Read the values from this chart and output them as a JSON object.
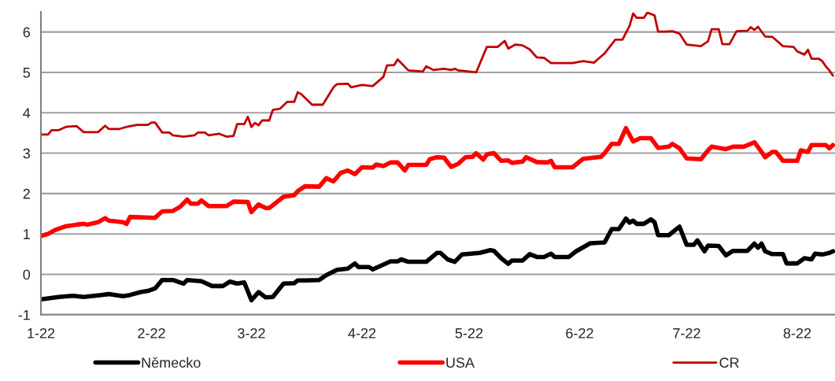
{
  "chart_data": {
    "type": "line",
    "xlim": [
      "2022-01-01",
      "2022-08-11T14:00"
    ],
    "xticks": [
      {
        "value": "2022-01-01",
        "label": "1-22"
      },
      {
        "value": "2022-02-01",
        "label": "2-22"
      },
      {
        "value": "2022-03-01",
        "label": "3-22"
      },
      {
        "value": "2022-04-01",
        "label": "4-22"
      },
      {
        "value": "2022-05-01",
        "label": "5-22"
      },
      {
        "value": "2022-06-01",
        "label": "6-22"
      },
      {
        "value": "2022-07-01",
        "label": "7-22"
      },
      {
        "value": "2022-08-01",
        "label": "8-22"
      }
    ],
    "ylim": [
      -1,
      6.5
    ],
    "yticks": [
      -1,
      0,
      1,
      2,
      3,
      4,
      5,
      6
    ],
    "grid": "y",
    "legend": "bottom",
    "line_style": "solid",
    "marker": "none",
    "series": [
      {
        "name": "Německo",
        "color": "#000000",
        "x": [
          "2022-01-01",
          "2022-01-06",
          "2022-01-10",
          "2022-01-13",
          "2022-01-18",
          "2022-01-20",
          "2022-01-24",
          "2022-01-26",
          "2022-01-29",
          "2022-01-31",
          "2022-02-02",
          "2022-02-04",
          "2022-02-07",
          "2022-02-10",
          "2022-02-11",
          "2022-02-15",
          "2022-02-18",
          "2022-02-21",
          "2022-02-23",
          "2022-02-25",
          "2022-02-27",
          "2022-03-01",
          "2022-03-03",
          "2022-03-05",
          "2022-03-07",
          "2022-03-10",
          "2022-03-13",
          "2022-03-14",
          "2022-03-16",
          "2022-03-20",
          "2022-03-22",
          "2022-03-25",
          "2022-03-28",
          "2022-03-30",
          "2022-03-31",
          "2022-04-03",
          "2022-04-04",
          "2022-04-09",
          "2022-04-11",
          "2022-04-12",
          "2022-04-14",
          "2022-04-19",
          "2022-04-22",
          "2022-04-23",
          "2022-04-25",
          "2022-04-27",
          "2022-04-29",
          "2022-05-04",
          "2022-05-07",
          "2022-05-08",
          "2022-05-10",
          "2022-05-12",
          "2022-05-13",
          "2022-05-16",
          "2022-05-18",
          "2022-05-20",
          "2022-05-22",
          "2022-05-24",
          "2022-05-25",
          "2022-05-29",
          "2022-05-31",
          "2022-06-04",
          "2022-06-08",
          "2022-06-10",
          "2022-06-12",
          "2022-06-14",
          "2022-06-15",
          "2022-06-16",
          "2022-06-17",
          "2022-06-19",
          "2022-06-21",
          "2022-06-22",
          "2022-06-23",
          "2022-06-26",
          "2022-06-29",
          "2022-07-01",
          "2022-07-03",
          "2022-07-04",
          "2022-07-06",
          "2022-07-07",
          "2022-07-10",
          "2022-07-12",
          "2022-07-14",
          "2022-07-18",
          "2022-07-20",
          "2022-07-21",
          "2022-07-22",
          "2022-07-23",
          "2022-07-25",
          "2022-07-28",
          "2022-07-29",
          "2022-08-01",
          "2022-08-03",
          "2022-08-05",
          "2022-08-06",
          "2022-08-08",
          "2022-08-10",
          "2022-08-11"
        ],
        "values": [
          -0.62,
          -0.56,
          -0.53,
          -0.56,
          -0.51,
          -0.49,
          -0.54,
          -0.51,
          -0.44,
          -0.41,
          -0.35,
          -0.14,
          -0.14,
          -0.23,
          -0.14,
          -0.17,
          -0.29,
          -0.29,
          -0.18,
          -0.23,
          -0.2,
          -0.64,
          -0.44,
          -0.57,
          -0.56,
          -0.23,
          -0.22,
          -0.15,
          -0.15,
          -0.14,
          -0.02,
          0.11,
          0.14,
          0.27,
          0.18,
          0.18,
          0.12,
          0.32,
          0.32,
          0.37,
          0.31,
          0.31,
          0.53,
          0.53,
          0.37,
          0.31,
          0.49,
          0.53,
          0.6,
          0.58,
          0.4,
          0.26,
          0.34,
          0.34,
          0.5,
          0.43,
          0.43,
          0.51,
          0.43,
          0.43,
          0.57,
          0.77,
          0.79,
          1.12,
          1.12,
          1.38,
          1.28,
          1.33,
          1.25,
          1.25,
          1.36,
          1.29,
          0.97,
          0.97,
          1.18,
          0.73,
          0.73,
          0.84,
          0.57,
          0.71,
          0.7,
          0.47,
          0.58,
          0.58,
          0.76,
          0.66,
          0.76,
          0.57,
          0.5,
          0.5,
          0.27,
          0.27,
          0.4,
          0.37,
          0.51,
          0.49,
          0.53,
          0.57
        ]
      },
      {
        "name": "USA",
        "color": "#ff0000",
        "x": [
          "2022-01-01",
          "2022-01-03",
          "2022-01-05",
          "2022-01-08",
          "2022-01-11",
          "2022-01-13",
          "2022-01-14",
          "2022-01-17",
          "2022-01-19",
          "2022-01-20",
          "2022-01-24",
          "2022-01-25",
          "2022-01-26",
          "2022-02-02",
          "2022-02-04",
          "2022-02-07",
          "2022-02-09",
          "2022-02-11",
          "2022-02-12",
          "2022-02-14",
          "2022-02-15",
          "2022-02-17",
          "2022-02-22",
          "2022-02-24",
          "2022-02-28",
          "2022-03-01",
          "2022-03-03",
          "2022-03-05",
          "2022-03-06",
          "2022-03-10",
          "2022-03-13",
          "2022-03-14",
          "2022-03-16",
          "2022-03-20",
          "2022-03-22",
          "2022-03-24",
          "2022-03-26",
          "2022-03-28",
          "2022-03-30",
          "2022-04-01",
          "2022-04-04",
          "2022-04-05",
          "2022-04-07",
          "2022-04-09",
          "2022-04-11",
          "2022-04-13",
          "2022-04-14",
          "2022-04-19",
          "2022-04-20",
          "2022-04-22",
          "2022-04-24",
          "2022-04-26",
          "2022-04-28",
          "2022-04-30",
          "2022-05-02",
          "2022-05-03",
          "2022-05-05",
          "2022-05-06",
          "2022-05-08",
          "2022-05-10",
          "2022-05-12",
          "2022-05-13",
          "2022-05-16",
          "2022-05-17",
          "2022-05-20",
          "2022-05-23",
          "2022-05-24",
          "2022-05-25",
          "2022-05-30",
          "2022-06-02",
          "2022-06-04",
          "2022-06-07",
          "2022-06-08",
          "2022-06-10",
          "2022-06-12",
          "2022-06-14",
          "2022-06-16",
          "2022-06-18",
          "2022-06-21",
          "2022-06-23",
          "2022-06-26",
          "2022-06-27",
          "2022-06-29",
          "2022-07-01",
          "2022-07-05",
          "2022-07-07",
          "2022-07-08",
          "2022-07-12",
          "2022-07-14",
          "2022-07-17",
          "2022-07-20",
          "2022-07-22",
          "2022-07-23",
          "2022-07-25",
          "2022-07-26",
          "2022-07-28",
          "2022-08-01",
          "2022-08-02",
          "2022-08-04",
          "2022-08-05",
          "2022-08-09",
          "2022-08-10",
          "2022-08-11"
        ],
        "values": [
          0.95,
          1.0,
          1.1,
          1.19,
          1.23,
          1.25,
          1.23,
          1.29,
          1.39,
          1.33,
          1.29,
          1.25,
          1.42,
          1.4,
          1.56,
          1.57,
          1.67,
          1.85,
          1.75,
          1.75,
          1.83,
          1.69,
          1.69,
          1.8,
          1.79,
          1.54,
          1.73,
          1.64,
          1.64,
          1.92,
          1.96,
          2.06,
          2.18,
          2.17,
          2.38,
          2.3,
          2.51,
          2.57,
          2.48,
          2.65,
          2.64,
          2.72,
          2.68,
          2.77,
          2.77,
          2.57,
          2.71,
          2.71,
          2.85,
          2.9,
          2.89,
          2.66,
          2.74,
          2.9,
          2.91,
          3.0,
          2.84,
          2.97,
          3.0,
          2.81,
          2.82,
          2.76,
          2.79,
          2.9,
          2.78,
          2.77,
          2.81,
          2.65,
          2.65,
          2.86,
          2.88,
          2.91,
          3.0,
          3.23,
          3.23,
          3.62,
          3.29,
          3.37,
          3.37,
          3.13,
          3.16,
          3.23,
          3.12,
          2.87,
          2.85,
          3.07,
          3.16,
          3.1,
          3.16,
          3.16,
          3.27,
          3.03,
          2.9,
          3.03,
          3.03,
          2.81,
          2.81,
          3.07,
          3.03,
          3.2,
          3.2,
          3.12,
          3.2
        ]
      },
      {
        "name": "CR",
        "color": "#c00000",
        "x": [
          "2022-01-01",
          "2022-01-03",
          "2022-01-04",
          "2022-01-06",
          "2022-01-08",
          "2022-01-11",
          "2022-01-13",
          "2022-01-17",
          "2022-01-19",
          "2022-01-20",
          "2022-01-23",
          "2022-01-25",
          "2022-01-28",
          "2022-01-31",
          "2022-02-01",
          "2022-02-02",
          "2022-02-04",
          "2022-02-06",
          "2022-02-07",
          "2022-02-10",
          "2022-02-13",
          "2022-02-14",
          "2022-02-16",
          "2022-02-17",
          "2022-02-20",
          "2022-02-22",
          "2022-02-24",
          "2022-02-25",
          "2022-02-27",
          "2022-02-28",
          "2022-03-01",
          "2022-03-02",
          "2022-03-03",
          "2022-03-04",
          "2022-03-06",
          "2022-03-07",
          "2022-03-09",
          "2022-03-11",
          "2022-03-13",
          "2022-03-14",
          "2022-03-15",
          "2022-03-18",
          "2022-03-21",
          "2022-03-24",
          "2022-03-25",
          "2022-03-28",
          "2022-03-29",
          "2022-04-01",
          "2022-04-04",
          "2022-04-07",
          "2022-04-08",
          "2022-04-10",
          "2022-04-11",
          "2022-04-14",
          "2022-04-18",
          "2022-04-19",
          "2022-04-21",
          "2022-04-24",
          "2022-04-26",
          "2022-04-27",
          "2022-04-28",
          "2022-05-03",
          "2022-05-06",
          "2022-05-09",
          "2022-05-11",
          "2022-05-12",
          "2022-05-14",
          "2022-05-16",
          "2022-05-18",
          "2022-05-20",
          "2022-05-22",
          "2022-05-24",
          "2022-05-30",
          "2022-06-02",
          "2022-06-05",
          "2022-06-08",
          "2022-06-11",
          "2022-06-13",
          "2022-06-15",
          "2022-06-16",
          "2022-06-17",
          "2022-06-19",
          "2022-06-20",
          "2022-06-22",
          "2022-06-23",
          "2022-06-25",
          "2022-06-27",
          "2022-06-29",
          "2022-07-01",
          "2022-07-05",
          "2022-07-07",
          "2022-07-08",
          "2022-07-10",
          "2022-07-11",
          "2022-07-13",
          "2022-07-15",
          "2022-07-18",
          "2022-07-19",
          "2022-07-20",
          "2022-07-21",
          "2022-07-23",
          "2022-07-25",
          "2022-07-28",
          "2022-07-31",
          "2022-08-01",
          "2022-08-03",
          "2022-08-04",
          "2022-08-05",
          "2022-08-07",
          "2022-08-08",
          "2022-08-09",
          "2022-08-10",
          "2022-08-11"
        ],
        "values": [
          3.46,
          3.46,
          3.57,
          3.57,
          3.65,
          3.67,
          3.52,
          3.52,
          3.68,
          3.6,
          3.6,
          3.65,
          3.7,
          3.7,
          3.76,
          3.76,
          3.51,
          3.51,
          3.44,
          3.41,
          3.44,
          3.51,
          3.51,
          3.44,
          3.48,
          3.41,
          3.43,
          3.72,
          3.72,
          3.9,
          3.65,
          3.75,
          3.69,
          3.81,
          3.81,
          4.07,
          4.1,
          4.27,
          4.27,
          4.51,
          4.46,
          4.2,
          4.2,
          4.63,
          4.71,
          4.72,
          4.63,
          4.69,
          4.66,
          4.89,
          5.17,
          5.18,
          5.32,
          5.05,
          5.02,
          5.15,
          5.06,
          5.09,
          5.06,
          5.09,
          5.05,
          5.0,
          5.63,
          5.63,
          5.78,
          5.59,
          5.69,
          5.67,
          5.57,
          5.37,
          5.36,
          5.23,
          5.23,
          5.28,
          5.24,
          5.47,
          5.81,
          5.81,
          6.15,
          6.46,
          6.35,
          6.35,
          6.48,
          6.41,
          6.01,
          6.01,
          6.02,
          5.96,
          5.69,
          5.65,
          5.77,
          6.07,
          6.07,
          5.7,
          5.7,
          6.02,
          6.03,
          6.12,
          6.05,
          6.13,
          5.89,
          5.88,
          5.65,
          5.63,
          5.52,
          5.44,
          5.56,
          5.34,
          5.34,
          5.28,
          5.15,
          5.05,
          4.92
        ]
      }
    ]
  }
}
